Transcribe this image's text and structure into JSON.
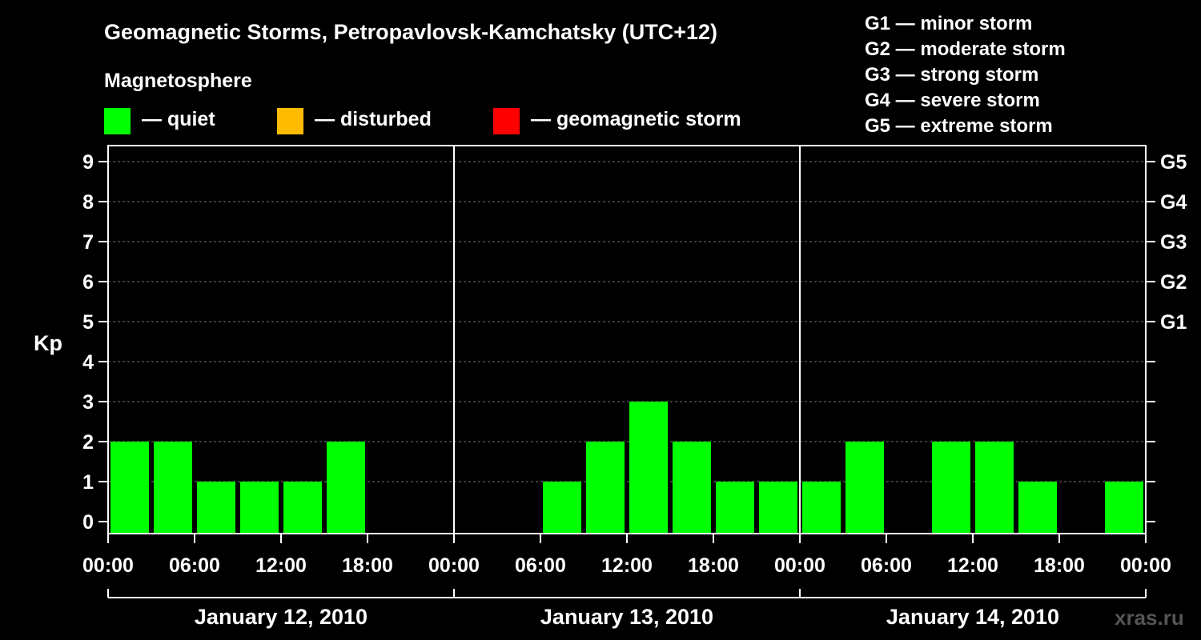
{
  "chart_data": {
    "type": "bar",
    "title": "Geomagnetic Storms, Petropavlovsk-Kamchatsky (UTC+12)",
    "legend": {
      "title": "Magnetosphere",
      "items": [
        {
          "label": "— quiet",
          "color": "#00ff00"
        },
        {
          "label": "— disturbed",
          "color": "#ffbb00"
        },
        {
          "label": "— geomagnetic storm",
          "color": "#ff0000"
        }
      ]
    },
    "storm_scale": [
      "G1 — minor storm",
      "G2 — moderate storm",
      "G3 — strong storm",
      "G4 — severe storm",
      "G5 — extreme storm"
    ],
    "ylabel": "Kp",
    "ylim": [
      0,
      9
    ],
    "y_ticks": [
      "0",
      "1",
      "2",
      "3",
      "4",
      "5",
      "6",
      "7",
      "8",
      "9"
    ],
    "right_ticks": [
      {
        "kp": 5,
        "label": "G1"
      },
      {
        "kp": 6,
        "label": "G2"
      },
      {
        "kp": 7,
        "label": "G3"
      },
      {
        "kp": 8,
        "label": "G4"
      },
      {
        "kp": 9,
        "label": "G5"
      }
    ],
    "grid": true,
    "x_tick_labels": [
      "00:00",
      "06:00",
      "12:00",
      "18:00",
      "00:00",
      "06:00",
      "12:00",
      "18:00",
      "00:00",
      "06:00",
      "12:00",
      "18:00",
      "00:00"
    ],
    "days": [
      "January 12, 2010",
      "January 13, 2010",
      "January 14, 2010"
    ],
    "series": [
      {
        "day": "January 12, 2010",
        "values": [
          2,
          2,
          1,
          1,
          1,
          2,
          null,
          null
        ]
      },
      {
        "day": "January 13, 2010",
        "values": [
          null,
          null,
          1,
          2,
          3,
          2,
          1,
          1
        ]
      },
      {
        "day": "January 14, 2010",
        "values": [
          1,
          2,
          null,
          2,
          2,
          1,
          null,
          1
        ]
      }
    ],
    "bar_color": "#00ff00"
  },
  "watermark": "xras.ru"
}
